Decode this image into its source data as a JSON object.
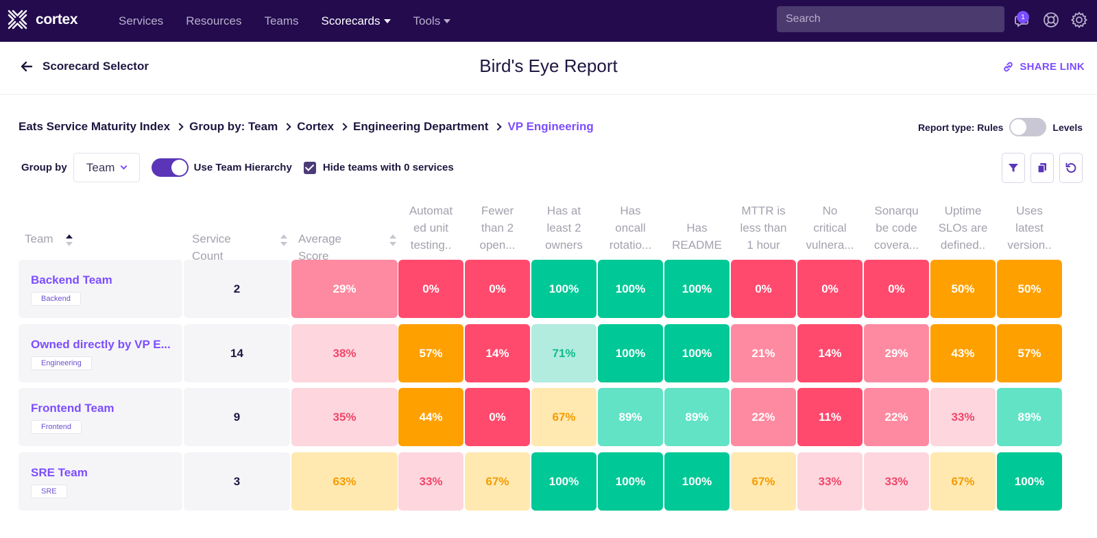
{
  "nav": {
    "brand": "cortex",
    "links": [
      {
        "label": "Services",
        "active": false,
        "caret": false
      },
      {
        "label": "Resources",
        "active": false,
        "caret": false
      },
      {
        "label": "Teams",
        "active": false,
        "caret": false
      },
      {
        "label": "Scorecards",
        "active": true,
        "caret": true
      },
      {
        "label": "Tools",
        "active": false,
        "caret": true
      }
    ],
    "search_placeholder": "Search",
    "notification_count": "1"
  },
  "header": {
    "back_label": "Scorecard Selector",
    "title": "Bird's Eye Report",
    "share_label": "SHARE LINK"
  },
  "breadcrumb": [
    "Eats Service Maturity Index",
    "Group by: Team",
    "Cortex",
    "Engineering Department",
    "VP Engineering"
  ],
  "report_type": {
    "label": "Report type: Rules",
    "alt_label": "Levels"
  },
  "controls": {
    "group_by_label": "Group by",
    "group_by_value": "Team",
    "hierarchy_label": "Use Team Hierarchy",
    "hide_empty_label": "Hide teams with 0 services"
  },
  "table": {
    "headers": {
      "team": "Team",
      "count": "Service Count",
      "average": "Average Score",
      "rules": [
        [
          "Automat",
          "ed unit",
          "testing.."
        ],
        [
          "Fewer",
          "than 2",
          "open..."
        ],
        [
          "Has at",
          "least 2",
          "owners"
        ],
        [
          "Has",
          "oncall",
          "rotatio..."
        ],
        [
          "Has",
          "README"
        ],
        [
          "MTTR is",
          "less than",
          "1 hour"
        ],
        [
          "No",
          "critical",
          "vulnera..."
        ],
        [
          "Sonarqu",
          "be code",
          "covera..."
        ],
        [
          "Uptime",
          "SLOs are",
          "defined.."
        ],
        [
          "Uses",
          "latest",
          "version.."
        ]
      ]
    },
    "rows": [
      {
        "team": "Backend Team",
        "tag": "Backend",
        "count": "2",
        "average": "29%",
        "scores": [
          "0%",
          "0%",
          "100%",
          "100%",
          "100%",
          "0%",
          "0%",
          "0%",
          "50%",
          "50%"
        ]
      },
      {
        "team": "Owned directly by VP E...",
        "tag": "Engineering",
        "count": "14",
        "average": "38%",
        "scores": [
          "57%",
          "14%",
          "71%",
          "100%",
          "100%",
          "21%",
          "14%",
          "29%",
          "43%",
          "57%"
        ]
      },
      {
        "team": "Frontend Team",
        "tag": "Frontend",
        "count": "9",
        "average": "35%",
        "scores": [
          "44%",
          "0%",
          "67%",
          "89%",
          "89%",
          "22%",
          "11%",
          "22%",
          "33%",
          "89%"
        ]
      },
      {
        "team": "SRE Team",
        "tag": "SRE",
        "count": "3",
        "average": "63%",
        "scores": [
          "33%",
          "67%",
          "100%",
          "100%",
          "100%",
          "67%",
          "33%",
          "33%",
          "67%",
          "100%"
        ]
      }
    ]
  },
  "colors": {
    "nav_bg": "#230b4e",
    "accent": "#7c4dff"
  }
}
